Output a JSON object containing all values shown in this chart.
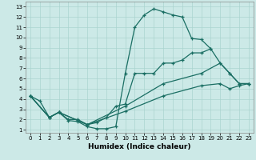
{
  "xlabel": "Humidex (Indice chaleur)",
  "xlim": [
    0,
    23
  ],
  "ylim": [
    1,
    13
  ],
  "xticks": [
    0,
    1,
    2,
    3,
    4,
    5,
    6,
    7,
    8,
    9,
    10,
    11,
    12,
    13,
    14,
    15,
    16,
    17,
    18,
    19,
    20,
    21,
    22,
    23
  ],
  "yticks": [
    1,
    2,
    3,
    4,
    5,
    6,
    7,
    8,
    9,
    10,
    11,
    12,
    13
  ],
  "bg_color": "#cce9e7",
  "grid_color": "#aad4d0",
  "line_color": "#1a6e63",
  "curves": [
    {
      "x": [
        0,
        1,
        2,
        3,
        4,
        5,
        6,
        7,
        8,
        9,
        10,
        11,
        12,
        13,
        14,
        15,
        16,
        17,
        18,
        19
      ],
      "y": [
        4.3,
        3.8,
        2.2,
        2.7,
        1.9,
        1.8,
        1.3,
        1.1,
        1.1,
        1.3,
        6.5,
        11.0,
        12.2,
        12.8,
        12.5,
        12.2,
        12.0,
        9.9,
        9.8,
        8.9
      ]
    },
    {
      "x": [
        0,
        2,
        3,
        4,
        5,
        6,
        7,
        8,
        9,
        10,
        11,
        12,
        13,
        14,
        15,
        16,
        17,
        18,
        19,
        20,
        21,
        22,
        23
      ],
      "y": [
        4.3,
        2.2,
        2.7,
        2.0,
        2.0,
        1.5,
        1.7,
        2.2,
        3.3,
        3.5,
        6.5,
        6.5,
        6.5,
        7.5,
        7.5,
        7.8,
        8.5,
        8.5,
        8.9,
        7.5,
        6.5,
        5.5,
        5.5
      ]
    },
    {
      "x": [
        0,
        2,
        3,
        6,
        10,
        14,
        18,
        20,
        21,
        22,
        23
      ],
      "y": [
        4.3,
        2.2,
        2.7,
        1.5,
        3.3,
        5.5,
        6.5,
        7.5,
        6.5,
        5.5,
        5.5
      ]
    },
    {
      "x": [
        0,
        2,
        3,
        6,
        10,
        14,
        18,
        20,
        21,
        22,
        23
      ],
      "y": [
        4.3,
        2.2,
        2.7,
        1.5,
        2.8,
        4.3,
        5.3,
        5.5,
        5.0,
        5.3,
        5.5
      ]
    }
  ]
}
